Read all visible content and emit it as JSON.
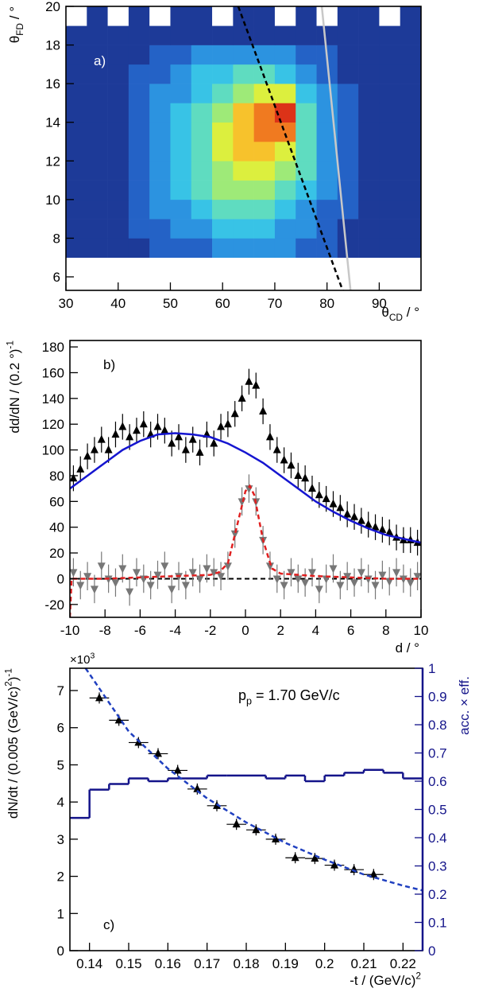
{
  "chart_data": [
    {
      "type": "heatmap",
      "panel_label": "a)",
      "xlabel": [
        "θ",
        {
          "sub": "CD"
        },
        " / °"
      ],
      "ylabel": [
        "θ",
        {
          "sub": "FD"
        },
        " / °"
      ],
      "xlim": [
        30,
        98
      ],
      "xticks": [
        30,
        40,
        50,
        60,
        70,
        80,
        90
      ],
      "ylim": [
        5.3,
        20
      ],
      "yticks": [
        6,
        8,
        10,
        12,
        14,
        16,
        18,
        20
      ],
      "xbins": [
        30,
        34,
        38,
        42,
        46,
        50,
        54,
        58,
        62,
        66,
        70,
        74,
        78,
        82,
        86,
        90,
        94,
        98
      ],
      "ybins": [
        7,
        8,
        9,
        10,
        11,
        12,
        13,
        14,
        15,
        16,
        17,
        18,
        19,
        20
      ],
      "colormap": [
        "#ffffff",
        "#1d3a98",
        "#2462c6",
        "#2c93e0",
        "#38c3e6",
        "#5fdcc0",
        "#9eea78",
        "#dcef3e",
        "#f7c22c",
        "#f07a20",
        "#dc3318"
      ],
      "z": [
        [
          1,
          1,
          1,
          1,
          2,
          2,
          2,
          3,
          3,
          3,
          3,
          2,
          2,
          1,
          1,
          1,
          1
        ],
        [
          1,
          1,
          1,
          2,
          2,
          3,
          3,
          4,
          4,
          4,
          3,
          3,
          2,
          1,
          1,
          1,
          1
        ],
        [
          1,
          1,
          1,
          2,
          3,
          3,
          4,
          5,
          5,
          5,
          4,
          3,
          2,
          2,
          1,
          1,
          1
        ],
        [
          1,
          1,
          1,
          2,
          3,
          4,
          5,
          6,
          6,
          6,
          5,
          4,
          3,
          2,
          1,
          1,
          1
        ],
        [
          1,
          1,
          1,
          2,
          3,
          4,
          5,
          6,
          7,
          7,
          6,
          5,
          3,
          2,
          1,
          1,
          1
        ],
        [
          1,
          1,
          1,
          2,
          3,
          4,
          5,
          7,
          8,
          8,
          7,
          5,
          3,
          2,
          1,
          1,
          1
        ],
        [
          1,
          1,
          1,
          2,
          3,
          4,
          5,
          7,
          8,
          9,
          9,
          5,
          3,
          2,
          1,
          1,
          1
        ],
        [
          1,
          1,
          1,
          2,
          3,
          4,
          5,
          6,
          8,
          9,
          10,
          5,
          3,
          2,
          1,
          1,
          1
        ],
        [
          1,
          1,
          1,
          2,
          3,
          3,
          4,
          5,
          6,
          7,
          7,
          4,
          3,
          2,
          1,
          1,
          1
        ],
        [
          1,
          1,
          1,
          2,
          2,
          3,
          4,
          4,
          5,
          5,
          4,
          3,
          2,
          1,
          1,
          1,
          1
        ],
        [
          1,
          1,
          1,
          1,
          2,
          2,
          3,
          3,
          3,
          3,
          3,
          2,
          2,
          1,
          1,
          1,
          1
        ],
        [
          1,
          1,
          1,
          1,
          1,
          1,
          1,
          1,
          1,
          1,
          1,
          1,
          1,
          1,
          1,
          1,
          1
        ],
        [
          0,
          1,
          0,
          1,
          0,
          1,
          1,
          0,
          1,
          1,
          0,
          1,
          0,
          1,
          1,
          0,
          1
        ]
      ],
      "lines": [
        {
          "x": [
            63,
            83
          ],
          "y": [
            20,
            5.3
          ],
          "color": "#000000",
          "dash": true
        },
        {
          "x": [
            79,
            84.5
          ],
          "y": [
            20,
            5.3
          ],
          "color": "#c8c8c8",
          "dash": false
        }
      ]
    },
    {
      "type": "errorbar",
      "panel_label": "b)",
      "xlabel": [
        "d / °"
      ],
      "ylabel": [
        "dd/dN / (0.2 °)",
        {
          "sup": "-1"
        }
      ],
      "xlim": [
        -10,
        10
      ],
      "xticks": [
        -10,
        -8,
        -6,
        -4,
        -2,
        0,
        2,
        4,
        6,
        8,
        10
      ],
      "ylim": [
        -30,
        185
      ],
      "yticks": [
        -20,
        0,
        20,
        40,
        60,
        80,
        100,
        120,
        140,
        160,
        180
      ],
      "x": [
        -9.8,
        -9.4,
        -9,
        -8.6,
        -8.2,
        -7.8,
        -7.4,
        -7,
        -6.6,
        -6.2,
        -5.8,
        -5.4,
        -5,
        -4.6,
        -4.2,
        -3.8,
        -3.4,
        -3,
        -2.6,
        -2.2,
        -1.8,
        -1.4,
        -1,
        -0.6,
        -0.2,
        0.2,
        0.6,
        1,
        1.4,
        1.8,
        2.2,
        2.6,
        3,
        3.4,
        3.8,
        4.2,
        4.6,
        5,
        5.4,
        5.8,
        6.2,
        6.6,
        7,
        7.4,
        7.8,
        8.2,
        8.6,
        9,
        9.4,
        9.8
      ],
      "series": [
        {
          "color": "#000000",
          "marker": "up",
          "yerr": 10,
          "values": [
            78,
            85,
            95,
            100,
            108,
            100,
            112,
            118,
            110,
            115,
            120,
            112,
            118,
            115,
            105,
            110,
            100,
            108,
            98,
            112,
            105,
            118,
            120,
            128,
            140,
            153,
            150,
            130,
            110,
            100,
            92,
            88,
            80,
            78,
            70,
            65,
            62,
            58,
            55,
            50,
            48,
            45,
            42,
            40,
            38,
            36,
            32,
            30,
            30,
            28
          ]
        },
        {
          "color": "#777777",
          "marker": "down",
          "yerr": 11,
          "values": [
            5,
            -5,
            2,
            -8,
            10,
            0,
            -3,
            8,
            -10,
            5,
            0,
            -5,
            3,
            10,
            -8,
            2,
            -5,
            5,
            0,
            8,
            5,
            2,
            10,
            35,
            60,
            70,
            60,
            30,
            10,
            0,
            -5,
            5,
            0,
            -3,
            5,
            -8,
            0,
            8,
            -5,
            2,
            -3,
            5,
            0,
            -5,
            3,
            -2,
            5,
            0,
            -3,
            2
          ]
        }
      ],
      "curves": [
        {
          "color": "#1515d0",
          "dash": false,
          "x": [
            -10,
            -9,
            -8,
            -7,
            -6,
            -5,
            -4,
            -3,
            -2,
            -1,
            0,
            1,
            2,
            3,
            4,
            5,
            6,
            7,
            8,
            9,
            10
          ],
          "values": [
            70,
            80,
            90,
            100,
            107,
            112,
            113,
            112,
            110,
            105,
            98,
            90,
            80,
            70,
            60,
            52,
            45,
            39,
            34,
            31,
            28
          ]
        },
        {
          "color": "#e02020",
          "dash": true,
          "x": [
            -10,
            -9.9,
            -8,
            -6,
            -4,
            -2,
            -1.5,
            -1,
            -0.5,
            0,
            0.25,
            0.5,
            1,
            1.5,
            2,
            4,
            6,
            8,
            10
          ],
          "values": [
            -30,
            0,
            0,
            1,
            2,
            3,
            5,
            12,
            40,
            68,
            72,
            65,
            30,
            8,
            4,
            2,
            1,
            0,
            0
          ]
        }
      ],
      "hline": 0
    },
    {
      "type": "errorbar",
      "panel_label": "c)",
      "xlabel": [
        "-t / (GeV/c)",
        {
          "sup": "2"
        }
      ],
      "ylabel": [
        "dN/dt / (0.005 (GeV/c)",
        {
          "sup": "2"
        },
        ")",
        {
          "sup": "-1"
        }
      ],
      "y_multiplier": [
        "×10",
        {
          "sup": "3"
        }
      ],
      "annotation": [
        "p",
        {
          "sub": "p"
        },
        " = 1.70 GeV/c"
      ],
      "y2label": [
        "acc. × eff."
      ],
      "xlim": [
        0.135,
        0.225
      ],
      "xticks": [
        0.14,
        0.15,
        0.16,
        0.17,
        0.18,
        0.19,
        0.2,
        0.21,
        0.22
      ],
      "ylim": [
        0,
        7.6
      ],
      "yticks": [
        0,
        1,
        2,
        3,
        4,
        5,
        6,
        7
      ],
      "y2lim": [
        0,
        1
      ],
      "y2ticks": [
        0,
        0.1,
        0.2,
        0.3,
        0.4,
        0.5,
        0.6,
        0.7,
        0.8,
        0.9,
        1
      ],
      "axis2_color": "#14148a",
      "x": [
        0.1425,
        0.1475,
        0.1525,
        0.1575,
        0.1625,
        0.1675,
        0.1725,
        0.1775,
        0.1825,
        0.1875,
        0.1925,
        0.1975,
        0.2025,
        0.2075,
        0.2125
      ],
      "series": [
        {
          "color": "#000000",
          "marker": "up",
          "yerr": 0.15,
          "xerr": 0.0025,
          "values": [
            6.8,
            6.2,
            5.6,
            5.3,
            4.85,
            4.35,
            3.9,
            3.4,
            3.25,
            3,
            2.5,
            2.48,
            2.3,
            2.18,
            2.05
          ]
        }
      ],
      "curves": [
        {
          "color": "#2040c0",
          "dash": true,
          "x": [
            0.139,
            0.15,
            0.16,
            0.17,
            0.18,
            0.19,
            0.2,
            0.21,
            0.22,
            0.225
          ],
          "values": [
            7.6,
            5.9,
            4.9,
            4.1,
            3.45,
            2.9,
            2.45,
            2.05,
            1.75,
            1.62
          ]
        }
      ],
      "histogram": {
        "axis": "y2",
        "color": "#14148a",
        "bins": [
          0.135,
          0.14,
          0.145,
          0.15,
          0.155,
          0.16,
          0.165,
          0.17,
          0.175,
          0.18,
          0.185,
          0.19,
          0.195,
          0.2,
          0.205,
          0.21,
          0.215,
          0.22,
          0.225
        ],
        "values": [
          0.47,
          0.57,
          0.59,
          0.61,
          0.6,
          0.61,
          0.61,
          0.62,
          0.62,
          0.62,
          0.61,
          0.62,
          0.6,
          0.62,
          0.63,
          0.64,
          0.63,
          0.61
        ]
      }
    }
  ]
}
